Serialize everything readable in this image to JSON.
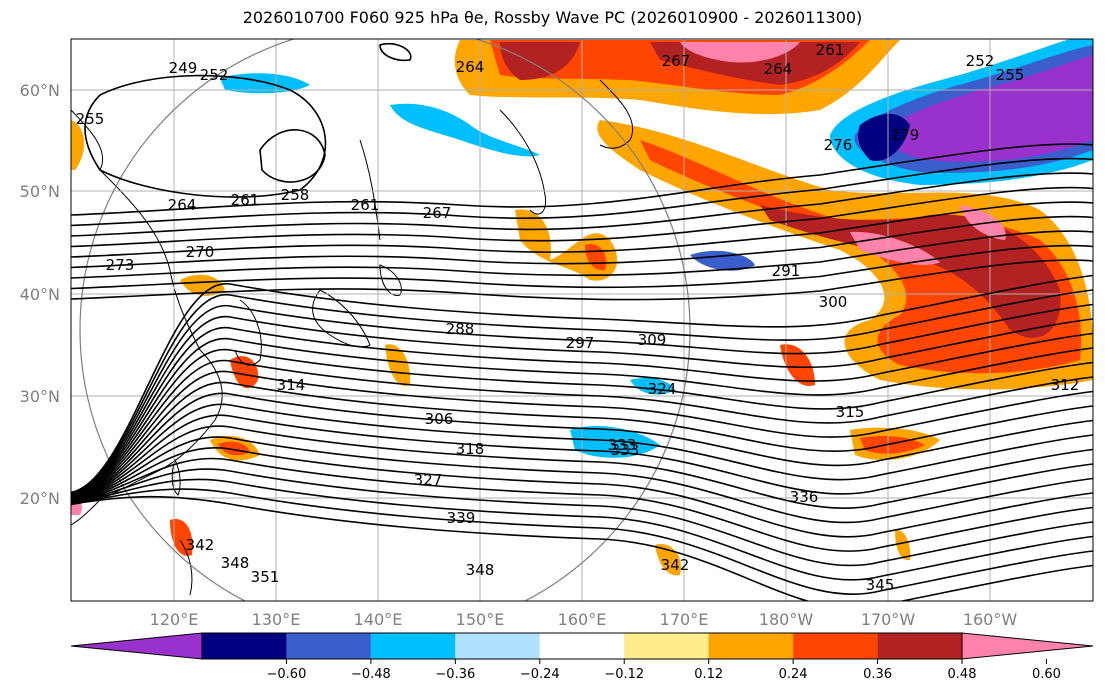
{
  "title": "2026010700 F060 925 hPa θe, Rossby Wave PC (2026010900 - 2026011300)",
  "lat_labels": [
    "60°N",
    "50°N",
    "40°N",
    "30°N",
    "20°N"
  ],
  "lon_labels": [
    "120°E",
    "130°E",
    "140°E",
    "150°E",
    "160°E",
    "170°E",
    "180°W",
    "170°W",
    "160°W"
  ],
  "contour_labels": [
    "249",
    "252",
    "255",
    "264",
    "267",
    "264",
    "261",
    "252",
    "255",
    "258",
    "261",
    "261",
    "264",
    "267",
    "270",
    "273",
    "276",
    "279",
    "291",
    "300",
    "288",
    "297",
    "309",
    "306",
    "318",
    "324",
    "333",
    "327",
    "339",
    "336",
    "342",
    "348",
    "351",
    "348",
    "342",
    "345",
    "312",
    "315",
    "314",
    "333"
  ],
  "colorbar": {
    "ticks": [
      "−0.60",
      "−0.48",
      "−0.36",
      "−0.24",
      "−0.12",
      "0.12",
      "0.24",
      "0.36",
      "0.48",
      "0.60"
    ],
    "colors": [
      "#9932cc",
      "#000080",
      "#3a5fcd",
      "#00bfff",
      "#b0e2ff",
      "#ffffff",
      "#ffec8b",
      "#ffa500",
      "#ff4500",
      "#b22222",
      "#ff82ab"
    ]
  }
}
